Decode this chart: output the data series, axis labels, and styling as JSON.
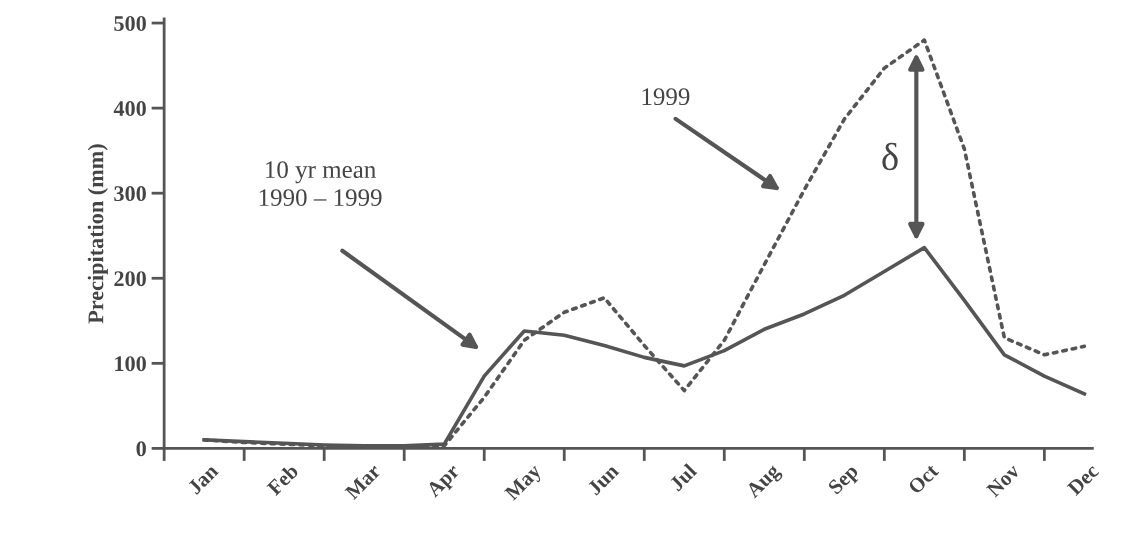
{
  "chart_data": {
    "type": "line",
    "ylabel": "Precipitation (mm)",
    "categories": [
      "Jan",
      null,
      "Feb",
      null,
      "Mar",
      null,
      "Apr",
      null,
      "May",
      null,
      "Jun",
      null,
      "Jul",
      null,
      "Aug",
      null,
      "Sep",
      null,
      "Oct",
      null,
      "Nov",
      null,
      "Dec"
    ],
    "series": [
      {
        "color": "#555555",
        "line_style": "solid",
        "values": [
          10,
          8,
          6,
          4,
          3,
          3,
          5,
          85,
          138,
          133,
          121,
          107,
          97,
          115,
          140,
          158,
          180,
          208,
          236,
          174,
          110,
          85,
          64
        ]
      },
      {
        "color": "#555555",
        "line_style": "dotted",
        "values": [
          10,
          7,
          5,
          3,
          2,
          2,
          3,
          60,
          127,
          160,
          177,
          121,
          68,
          127,
          216,
          304,
          387,
          447,
          480,
          352,
          130,
          110,
          120
        ]
      }
    ],
    "ylim": [
      0,
      505
    ],
    "yticks": [
      0,
      100,
      200,
      300,
      400,
      500
    ],
    "grid": false,
    "legend": false,
    "marker": "none",
    "annotations": [
      "10 yr mean\n1990 – 1999",
      "1999",
      "δ"
    ]
  }
}
